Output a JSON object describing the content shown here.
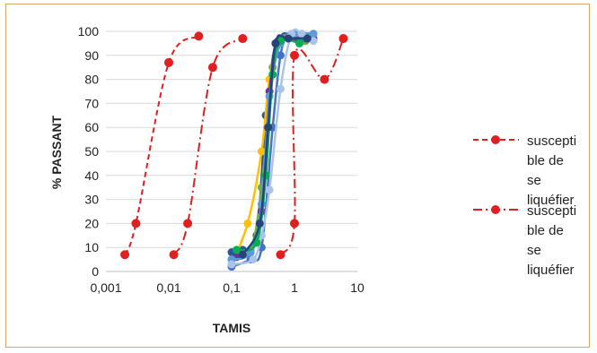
{
  "chart_data": {
    "type": "line",
    "xlabel": "TAMIS",
    "ylabel": "% PASSANT",
    "x_scale": "log",
    "xlim": [
      0.001,
      10
    ],
    "ylim": [
      0,
      100
    ],
    "x_ticks": [
      "0,001",
      "0,01",
      "0,1",
      "1",
      "10"
    ],
    "y_ticks": [
      "0",
      "10",
      "20",
      "30",
      "40",
      "50",
      "60",
      "70",
      "80",
      "90",
      "100"
    ],
    "grid": "horizontal",
    "legend_position": "right",
    "legend": [
      [
        "suscepti",
        "ble de",
        "se",
        "liquéfier"
      ],
      [
        "suscepti",
        "ble de",
        "se",
        "liquéfier"
      ]
    ],
    "boundary_series": [
      {
        "style": "dash",
        "color": "#e02020",
        "points": [
          [
            0.002,
            7
          ],
          [
            0.003,
            20
          ],
          [
            0.01,
            87
          ],
          [
            0.03,
            98
          ]
        ]
      },
      {
        "style": "dashdot",
        "color": "#e02020",
        "points": [
          [
            0.012,
            7
          ],
          [
            0.02,
            20
          ],
          [
            0.05,
            85
          ],
          [
            0.15,
            97
          ]
        ]
      },
      {
        "style": "dashdot",
        "color": "#e02020",
        "points": [
          [
            0.6,
            7
          ],
          [
            1.0,
            20
          ],
          [
            1.0,
            90
          ],
          [
            3.0,
            80
          ],
          [
            6.0,
            97
          ]
        ]
      }
    ],
    "series": [
      {
        "color": "#2f5597",
        "points": [
          [
            0.1,
            8
          ],
          [
            0.15,
            9
          ],
          [
            0.25,
            15
          ],
          [
            0.35,
            65
          ],
          [
            0.5,
            95
          ],
          [
            0.7,
            98
          ],
          [
            1.5,
            98
          ]
        ]
      },
      {
        "color": "#70ad47",
        "points": [
          [
            0.1,
            5
          ],
          [
            0.2,
            9
          ],
          [
            0.3,
            35
          ],
          [
            0.45,
            85
          ],
          [
            0.6,
            97
          ],
          [
            1.0,
            98
          ],
          [
            1.5,
            96
          ]
        ]
      },
      {
        "color": "#ffc000",
        "points": [
          [
            0.1,
            3
          ],
          [
            0.18,
            20
          ],
          [
            0.3,
            50
          ],
          [
            0.4,
            80
          ],
          [
            0.6,
            97
          ],
          [
            1.2,
            98
          ]
        ]
      },
      {
        "color": "#7030a0",
        "points": [
          [
            0.12,
            6
          ],
          [
            0.2,
            8
          ],
          [
            0.3,
            25
          ],
          [
            0.4,
            75
          ],
          [
            0.55,
            96
          ],
          [
            1.0,
            97
          ],
          [
            2.0,
            97
          ]
        ]
      },
      {
        "color": "#4472c4",
        "points": [
          [
            0.1,
            2
          ],
          [
            0.2,
            5
          ],
          [
            0.3,
            10
          ],
          [
            0.45,
            60
          ],
          [
            0.6,
            90
          ],
          [
            0.8,
            98
          ],
          [
            1.5,
            97
          ]
        ]
      },
      {
        "color": "#5b9bd5",
        "points": [
          [
            0.1,
            5
          ],
          [
            0.2,
            8
          ],
          [
            0.3,
            28
          ],
          [
            0.4,
            73
          ],
          [
            0.6,
            95
          ],
          [
            1.0,
            99
          ],
          [
            2.0,
            99
          ]
        ]
      },
      {
        "color": "#a9c4e8",
        "points": [
          [
            0.1,
            3
          ],
          [
            0.22,
            5
          ],
          [
            0.3,
            15
          ],
          [
            0.4,
            34
          ],
          [
            0.6,
            76
          ],
          [
            0.9,
            99
          ],
          [
            1.3,
            99
          ],
          [
            2.0,
            96
          ]
        ]
      },
      {
        "color": "#00b050",
        "points": [
          [
            0.12,
            9
          ],
          [
            0.25,
            12
          ],
          [
            0.35,
            40
          ],
          [
            0.45,
            82
          ],
          [
            0.6,
            96
          ],
          [
            1.2,
            95
          ]
        ]
      },
      {
        "color": "#264478",
        "points": [
          [
            0.15,
            7
          ],
          [
            0.28,
            20
          ],
          [
            0.38,
            60
          ],
          [
            0.5,
            95
          ],
          [
            0.8,
            97
          ],
          [
            1.6,
            97
          ]
        ]
      }
    ]
  }
}
